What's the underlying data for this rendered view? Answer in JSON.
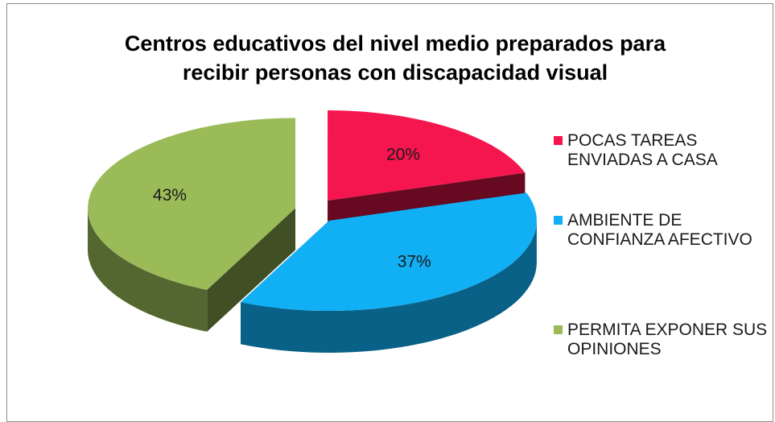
{
  "chart_data": {
    "type": "pie",
    "title": "Centros educativos del nivel medio preparados para recibir personas con discapacidad visual",
    "categories": [
      "POCAS TAREAS ENVIADAS A CASA",
      "AMBIENTE DE CONFIANZA AFECTIVO",
      "PERMITA EXPONER SUS OPINIONES"
    ],
    "values": [
      20,
      37,
      43
    ],
    "value_labels": [
      "20%",
      "37%",
      "43%"
    ],
    "colors": [
      "#f5154f",
      "#11b0f5",
      "#9bbb59"
    ],
    "legend": "right"
  }
}
